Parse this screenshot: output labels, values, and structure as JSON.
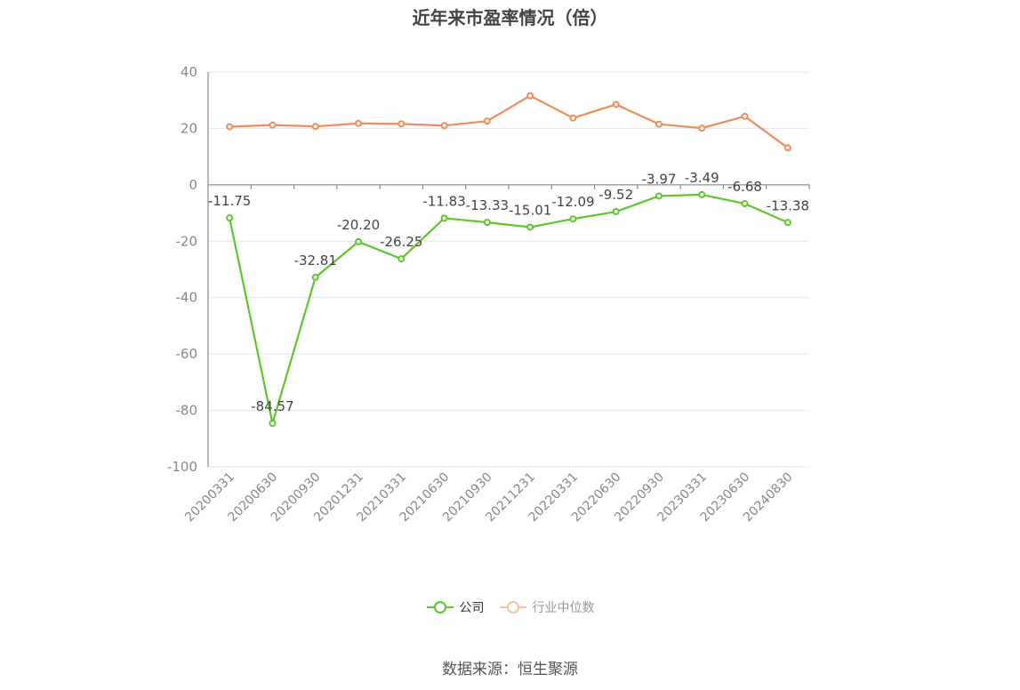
{
  "title": "近年来市盈率情况（倍）",
  "source": "数据来源：恒生聚源",
  "chart_data": {
    "type": "line",
    "title": "近年来市盈率情况（倍）",
    "categories": [
      "20200331",
      "20200630",
      "20200930",
      "20201231",
      "20210331",
      "20210630",
      "20210930",
      "20211231",
      "20220331",
      "20220630",
      "20220930",
      "20230331",
      "20230630",
      "20240830"
    ],
    "ylim": [
      -100,
      40
    ],
    "yticks": [
      40,
      20,
      0,
      -20,
      -40,
      -60,
      -80,
      -100
    ],
    "grid": true,
    "legend_position": "bottom",
    "series": [
      {
        "name": "公司",
        "color": "#5cc72b",
        "values": [
          -11.75,
          -84.57,
          -32.81,
          -20.2,
          -26.25,
          -11.83,
          -13.33,
          -15.01,
          -12.09,
          -9.52,
          -3.97,
          -3.49,
          -6.68,
          -13.38
        ],
        "labels": [
          "-11.75",
          "-84.57",
          "-32.81",
          "-20.20",
          "-26.25",
          "-11.83",
          "-13.33",
          "-15.01",
          "-12.09",
          "-9.52",
          "-3.97",
          "-3.49",
          "-6.68",
          "-13.38"
        ]
      },
      {
        "name": "行业中位数",
        "color": "#f08c56",
        "values": [
          20.6,
          21.2,
          20.7,
          21.8,
          21.6,
          21.0,
          22.6,
          31.6,
          23.7,
          28.5,
          21.5,
          20.1,
          24.3,
          13.1
        ]
      }
    ]
  },
  "legend": {
    "company_label": "公司",
    "industry_label": "行业中位数"
  }
}
